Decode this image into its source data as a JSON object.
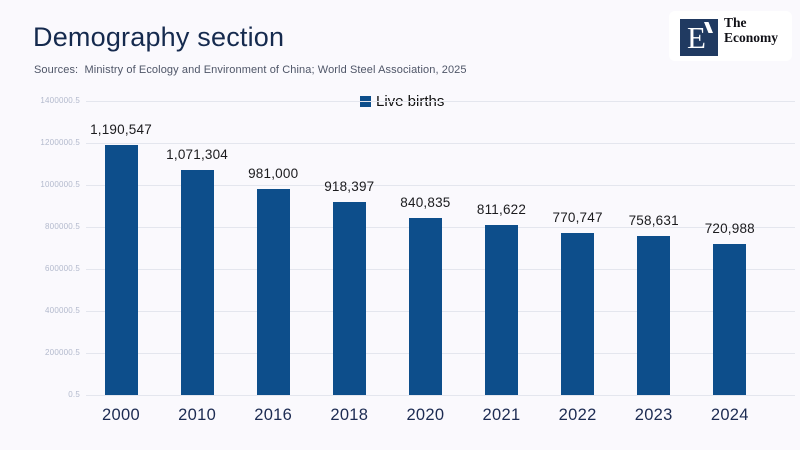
{
  "header": {
    "title": "Demography section",
    "sources": "Sources:  Ministry of Ecology and Environment of China; World Steel Association, 2025",
    "logo": {
      "mark_letter": "E",
      "line1": "The",
      "line2": "Economy"
    }
  },
  "chart_data": {
    "type": "bar",
    "title": "",
    "legend": {
      "label": "Live births",
      "position": "top-center"
    },
    "categories": [
      "2000",
      "2010",
      "2016",
      "2018",
      "2020",
      "2021",
      "2022",
      "2023",
      "2024"
    ],
    "values": [
      1190547,
      1071304,
      981000,
      918397,
      840835,
      811622,
      770747,
      758631,
      720988
    ],
    "value_labels": [
      "1,190,547",
      "1,071,304",
      "981,000",
      "918,397",
      "840,835",
      "811,622",
      "770,747",
      "758,631",
      "720,988"
    ],
    "y_ticks": [
      "1400000.5",
      "1200000.5",
      "1000000.5",
      "800000.5",
      "600000.5",
      "400000.5",
      "200000.5",
      "0.5"
    ],
    "ylim": [
      0.5,
      1400000.5
    ],
    "grid": true,
    "xlabel": "",
    "ylabel": "",
    "bar_color": "#0d4e8b"
  },
  "colors": {
    "background": "#faf9fd",
    "bar": "#0d4e8b",
    "title_text": "#152a4e",
    "axis_label_text": "#1c2b52",
    "ytick_text": "#b3bacd",
    "gridline": "#e4e6ee",
    "logo_square": "#203a61"
  }
}
